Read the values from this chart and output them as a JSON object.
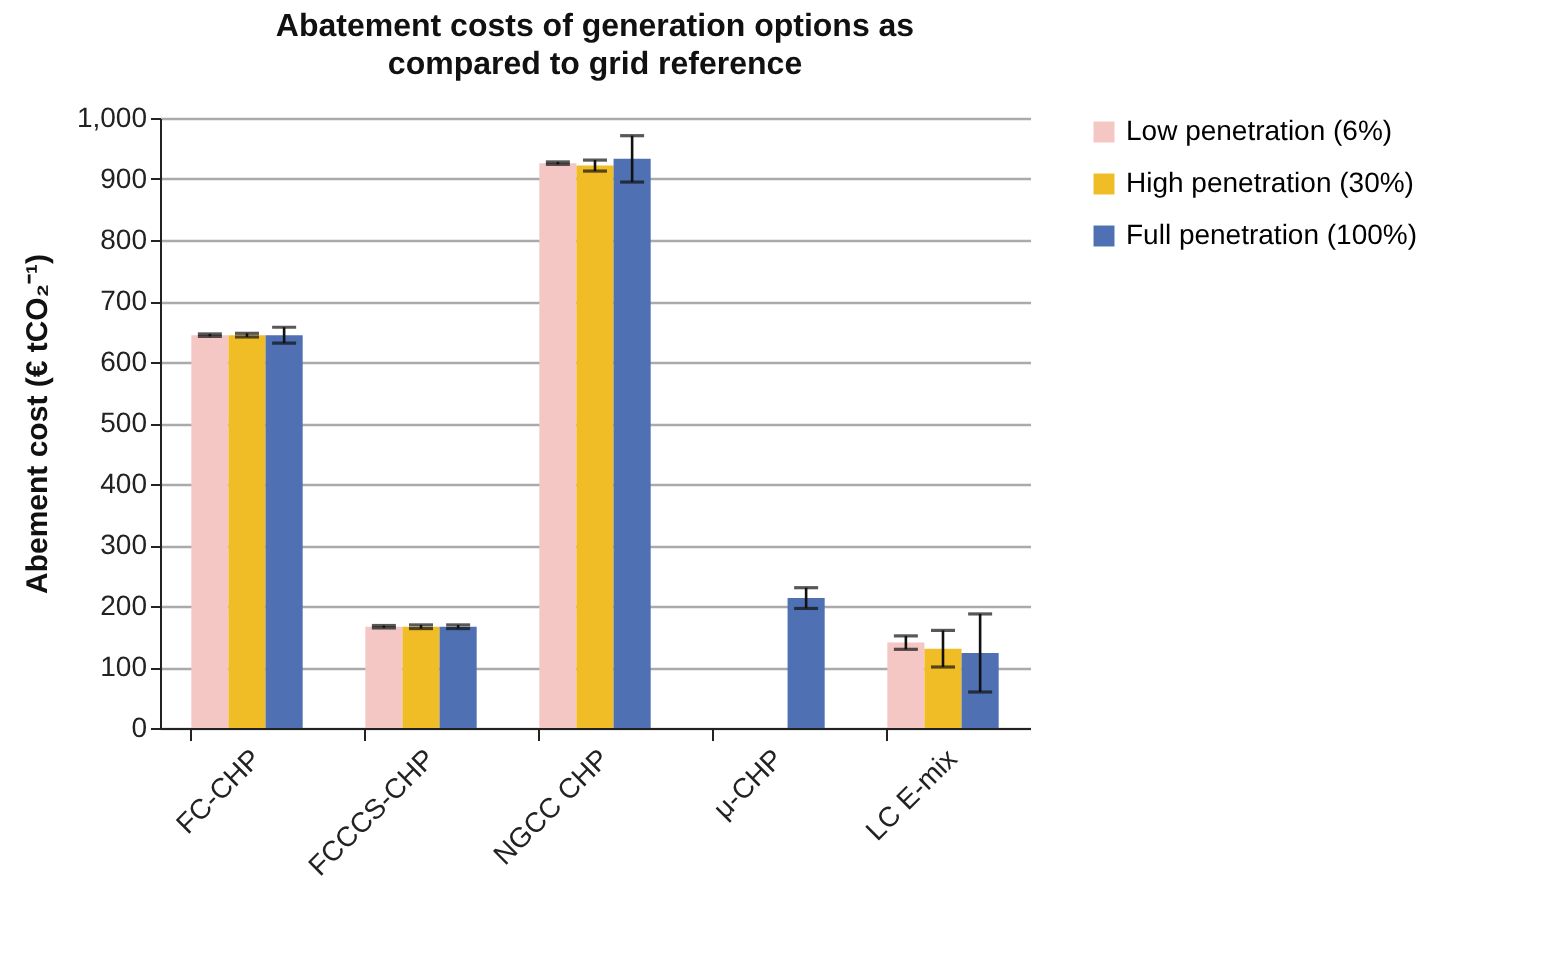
{
  "chart_data": {
    "type": "bar",
    "title": "Abatement costs of generation options as compared to grid reference",
    "ylabel": "Abement cost (€ tCO₂⁻¹)",
    "categories": [
      "FC-CHP",
      "FCCCS-CHP",
      "NGCC CHP",
      "μ-CHP",
      "LC E-mix"
    ],
    "series": [
      {
        "name": "Low penetration (6%)",
        "color": "#f4c7c5",
        "values": [
          644,
          166,
          926,
          null,
          140
        ],
        "errors": [
          2,
          2,
          2,
          null,
          11
        ]
      },
      {
        "name": "High penetration (30%)",
        "color": "#f0bd27",
        "values": [
          644,
          166,
          922,
          null,
          130
        ],
        "errors": [
          3,
          3,
          9,
          null,
          30
        ]
      },
      {
        "name": "Full penetration (100%)",
        "color": "#4f71b3",
        "values": [
          644,
          166,
          933,
          213,
          123
        ],
        "errors": [
          13,
          3,
          38,
          17,
          64
        ]
      }
    ],
    "ylim": [
      0,
      1000
    ],
    "yticks": [
      {
        "value": 0,
        "label": "0"
      },
      {
        "value": 100,
        "label": "100"
      },
      {
        "value": 200,
        "label": "200"
      },
      {
        "value": 300,
        "label": "300"
      },
      {
        "value": 400,
        "label": "400"
      },
      {
        "value": 500,
        "label": "500"
      },
      {
        "value": 600,
        "label": "600"
      },
      {
        "value": 700,
        "label": "700"
      },
      {
        "value": 800,
        "label": "800"
      },
      {
        "value": 900,
        "label": "900"
      },
      {
        "value": 1000,
        "label": "1,000"
      }
    ],
    "grid": "y",
    "legend": "right"
  }
}
